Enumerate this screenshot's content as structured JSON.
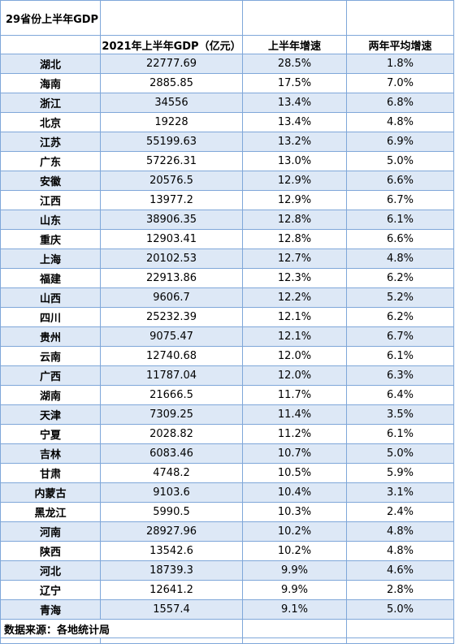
{
  "table": {
    "title": "29省份上半年GDP",
    "headers": [
      "",
      "2021年上半年GDP（亿元）",
      "上半年增速",
      "两年平均增速"
    ],
    "rows": [
      [
        "湖北",
        "22777.69",
        "28.5%",
        "1.8%"
      ],
      [
        "海南",
        "2885.85",
        "17.5%",
        "7.0%"
      ],
      [
        "浙江",
        "34556",
        "13.4%",
        "6.8%"
      ],
      [
        "北京",
        "19228",
        "13.4%",
        "4.8%"
      ],
      [
        "江苏",
        "55199.63",
        "13.2%",
        "6.9%"
      ],
      [
        "广东",
        "57226.31",
        "13.0%",
        "5.0%"
      ],
      [
        "安徽",
        "20576.5",
        "12.9%",
        "6.6%"
      ],
      [
        "江西",
        "13977.2",
        "12.9%",
        "6.7%"
      ],
      [
        "山东",
        "38906.35",
        "12.8%",
        "6.1%"
      ],
      [
        "重庆",
        "12903.41",
        "12.8%",
        "6.6%"
      ],
      [
        "上海",
        "20102.53",
        "12.7%",
        "4.8%"
      ],
      [
        "福建",
        "22913.86",
        "12.3%",
        "6.2%"
      ],
      [
        "山西",
        "9606.7",
        "12.2%",
        "5.2%"
      ],
      [
        "四川",
        "25232.39",
        "12.1%",
        "6.2%"
      ],
      [
        "贵州",
        "9075.47",
        "12.1%",
        "6.7%"
      ],
      [
        "云南",
        "12740.68",
        "12.0%",
        "6.1%"
      ],
      [
        "广西",
        "11787.04",
        "12.0%",
        "6.3%"
      ],
      [
        "湖南",
        "21666.5",
        "11.7%",
        "6.4%"
      ],
      [
        "天津",
        "7309.25",
        "11.4%",
        "3.5%"
      ],
      [
        "宁夏",
        "2028.82",
        "11.2%",
        "6.1%"
      ],
      [
        "吉林",
        "6083.46",
        "10.7%",
        "5.0%"
      ],
      [
        "甘肃",
        "4748.2",
        "10.5%",
        "5.9%"
      ],
      [
        "内蒙古",
        "9103.6",
        "10.4%",
        "3.1%"
      ],
      [
        "黑龙江",
        "5990.5",
        "10.3%",
        "2.4%"
      ],
      [
        "河南",
        "28927.96",
        "10.2%",
        "4.8%"
      ],
      [
        "陕西",
        "13542.6",
        "10.2%",
        "4.8%"
      ],
      [
        "河北",
        "18739.3",
        "9.9%",
        "4.6%"
      ],
      [
        "辽宁",
        "12641.2",
        "9.9%",
        "2.8%"
      ],
      [
        "青海",
        "1557.4",
        "9.1%",
        "5.0%"
      ]
    ],
    "source": "数据来源：各地统计局"
  }
}
